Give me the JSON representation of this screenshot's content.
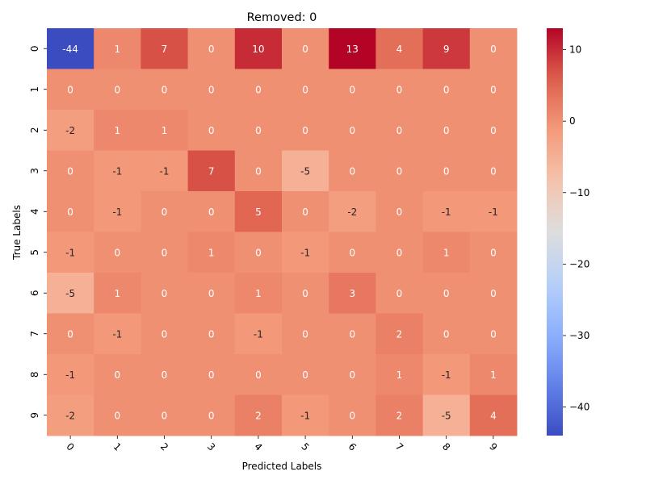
{
  "chart_data": {
    "type": "heatmap",
    "title": "Removed: 0",
    "xlabel": "Predicted Labels",
    "ylabel": "True Labels",
    "x_categories": [
      "0",
      "1",
      "2",
      "3",
      "4",
      "5",
      "6",
      "7",
      "8",
      "9"
    ],
    "y_categories": [
      "0",
      "1",
      "2",
      "3",
      "4",
      "5",
      "6",
      "7",
      "8",
      "9"
    ],
    "values": [
      [
        -44,
        1,
        7,
        0,
        10,
        0,
        13,
        4,
        9,
        0
      ],
      [
        0,
        0,
        0,
        0,
        0,
        0,
        0,
        0,
        0,
        0
      ],
      [
        -2,
        1,
        1,
        0,
        0,
        0,
        0,
        0,
        0,
        0
      ],
      [
        0,
        -1,
        -1,
        7,
        0,
        -5,
        0,
        0,
        0,
        0
      ],
      [
        0,
        -1,
        0,
        0,
        5,
        0,
        -2,
        0,
        -1,
        -1
      ],
      [
        -1,
        0,
        0,
        1,
        0,
        -1,
        0,
        0,
        1,
        0
      ],
      [
        -5,
        1,
        0,
        0,
        1,
        0,
        3,
        0,
        0,
        0
      ],
      [
        0,
        -1,
        0,
        0,
        -1,
        0,
        0,
        2,
        0,
        0
      ],
      [
        -1,
        0,
        0,
        0,
        0,
        0,
        0,
        1,
        -1,
        1
      ],
      [
        -2,
        0,
        0,
        0,
        2,
        -1,
        0,
        2,
        -5,
        4
      ]
    ],
    "colormap": "coolwarm",
    "vmin": -44,
    "vmax": 13,
    "colorbar_ticks": [
      10,
      0,
      -10,
      -20,
      -30,
      -40
    ],
    "colorbar_tick_labels": [
      "10",
      "0",
      "−10",
      "−20",
      "−30",
      "−40"
    ],
    "x_tick_rotation": "45 degrees",
    "annotations": true,
    "grid": false
  }
}
